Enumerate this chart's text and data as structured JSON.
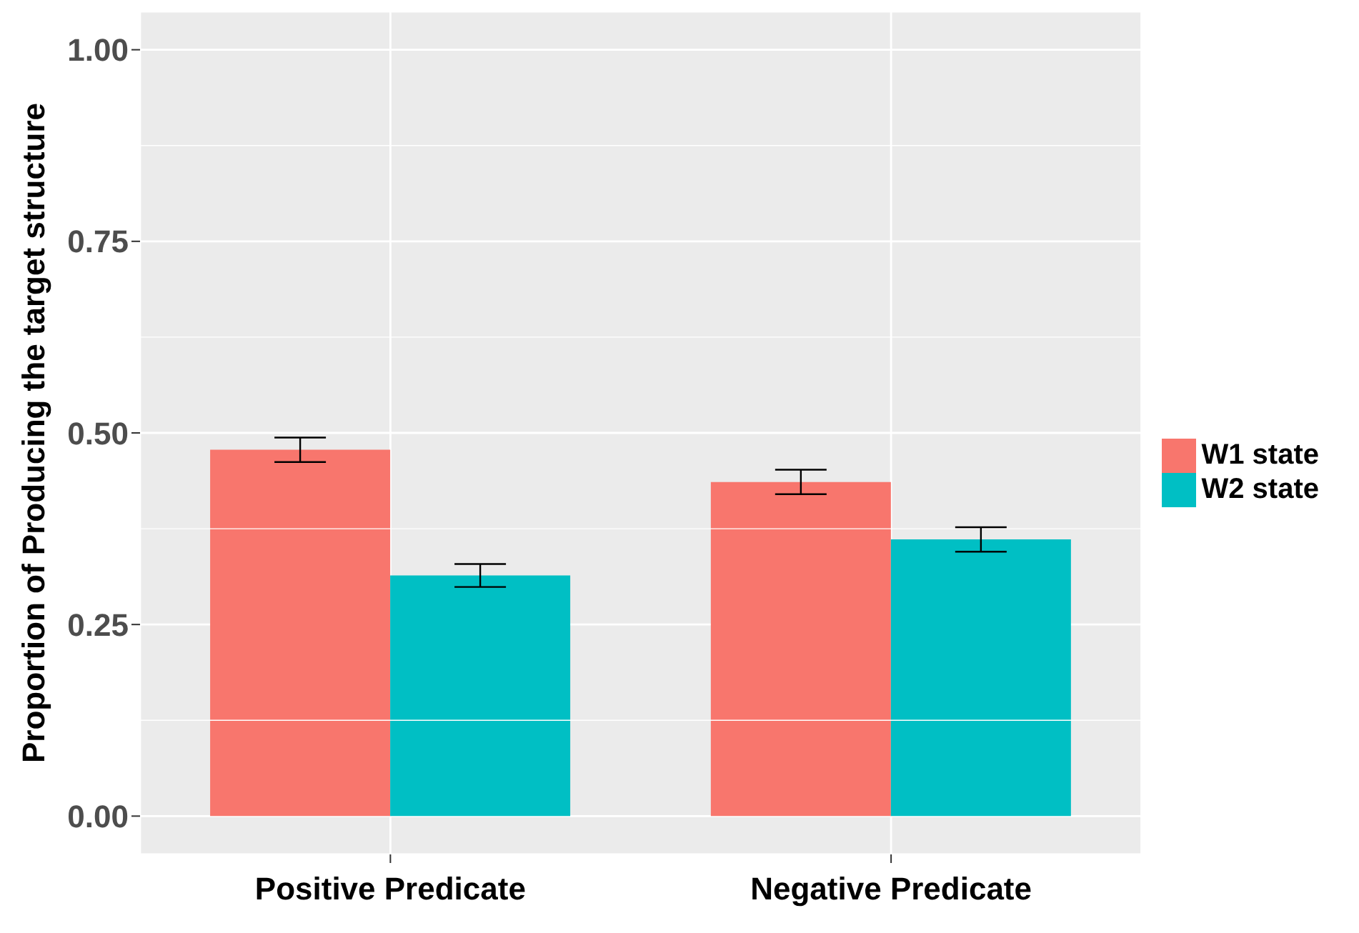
{
  "chart_data": {
    "type": "bar",
    "ylabel": "Proportion of Producing the target structure",
    "categories": [
      "Positive Predicate",
      "Negative Predicate"
    ],
    "series": [
      {
        "name": "W1 state",
        "color": "#f8766d",
        "values": [
          0.478,
          0.436
        ],
        "errors": [
          0.016,
          0.016
        ]
      },
      {
        "name": "W2 state",
        "color": "#00bfc4",
        "values": [
          0.314,
          0.361
        ],
        "errors": [
          0.015,
          0.016
        ]
      }
    ],
    "ylim": [
      -0.05,
      1.05
    ],
    "yticks": [
      {
        "value": 0,
        "label": "0.00"
      },
      {
        "value": 0.25,
        "label": "0.25"
      },
      {
        "value": 0.5,
        "label": "0.50"
      },
      {
        "value": 0.75,
        "label": "0.75"
      },
      {
        "value": 1,
        "label": "1.00"
      }
    ],
    "grid": true,
    "legend": "right"
  }
}
